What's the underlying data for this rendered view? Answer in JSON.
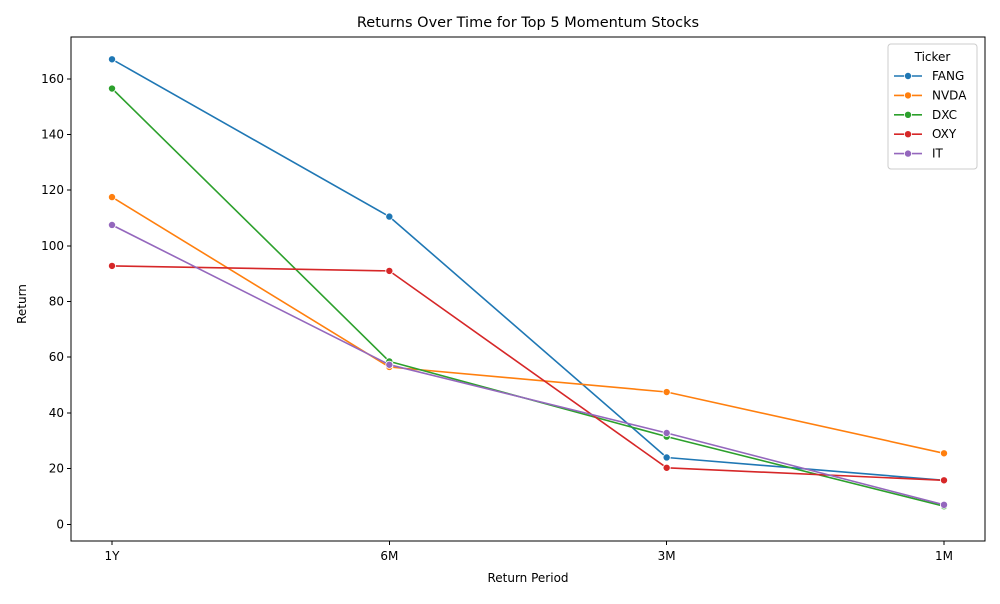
{
  "chart_data": {
    "type": "line",
    "title": "Returns Over Time for Top 5 Momentum Stocks",
    "xlabel": "Return Period",
    "ylabel": "Return",
    "categories": [
      "1Y",
      "6M",
      "3M",
      "1M"
    ],
    "ylim": [
      -6,
      175
    ],
    "yticks": [
      0,
      20,
      40,
      60,
      80,
      100,
      120,
      140,
      160
    ],
    "grid": false,
    "legend": {
      "title": "Ticker",
      "placement": "top-right"
    },
    "series": [
      {
        "name": "FANG",
        "color": "#1f77b4",
        "values": [
          167.0,
          110.5,
          24.0,
          15.8
        ]
      },
      {
        "name": "NVDA",
        "color": "#ff7f0e",
        "values": [
          117.5,
          56.5,
          47.5,
          25.5
        ]
      },
      {
        "name": "DXC",
        "color": "#2ca02c",
        "values": [
          156.5,
          58.5,
          31.5,
          6.5
        ]
      },
      {
        "name": "OXY",
        "color": "#d62728",
        "values": [
          92.8,
          91.0,
          20.3,
          15.8
        ]
      },
      {
        "name": "IT",
        "color": "#9467bd",
        "values": [
          107.5,
          57.3,
          32.8,
          7.0
        ]
      }
    ]
  }
}
